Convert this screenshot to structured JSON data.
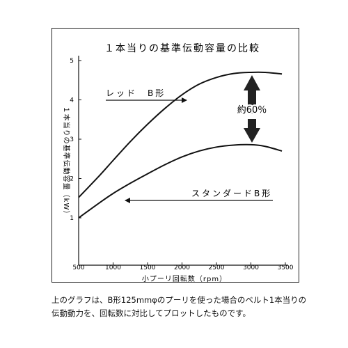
{
  "chart_data": {
    "type": "line",
    "title": "１本当りの基準伝動容量の比較",
    "xlabel": "小プーリ回転数（rpm）",
    "ylabel": "１本当りの基準伝動容量（kW）",
    "xlim": [
      500,
      3500
    ],
    "ylim": [
      1,
      5
    ],
    "x_ticks": [
      500,
      1000,
      1500,
      2000,
      2500,
      3000,
      3500
    ],
    "y_ticks": [
      1,
      2,
      3,
      4,
      5
    ],
    "series": [
      {
        "name": "レッド　B形",
        "x": [
          500,
          800,
          1000,
          1250,
          1500,
          1750,
          2000,
          2250,
          2500,
          2750,
          3000,
          3200,
          3450
        ],
        "values": [
          1.52,
          2.07,
          2.46,
          2.94,
          3.38,
          3.78,
          4.13,
          4.4,
          4.57,
          4.67,
          4.7,
          4.7,
          4.66
        ]
      },
      {
        "name": "スタンダードB形",
        "x": [
          500,
          800,
          1000,
          1250,
          1500,
          1750,
          2000,
          2250,
          2500,
          2750,
          3000,
          3200,
          3450
        ],
        "values": [
          1.0,
          1.38,
          1.62,
          1.88,
          2.12,
          2.35,
          2.55,
          2.7,
          2.8,
          2.85,
          2.86,
          2.82,
          2.7
        ]
      }
    ],
    "annotation": "約60％",
    "grid": false,
    "legend": "inline-labels"
  },
  "caption": {
    "line1": "上のグラフは、B形125mmφのプーリを使った場合のベルト1本当りの",
    "line2": "伝動動力を、回転数に対比してプロットしたものです。"
  }
}
